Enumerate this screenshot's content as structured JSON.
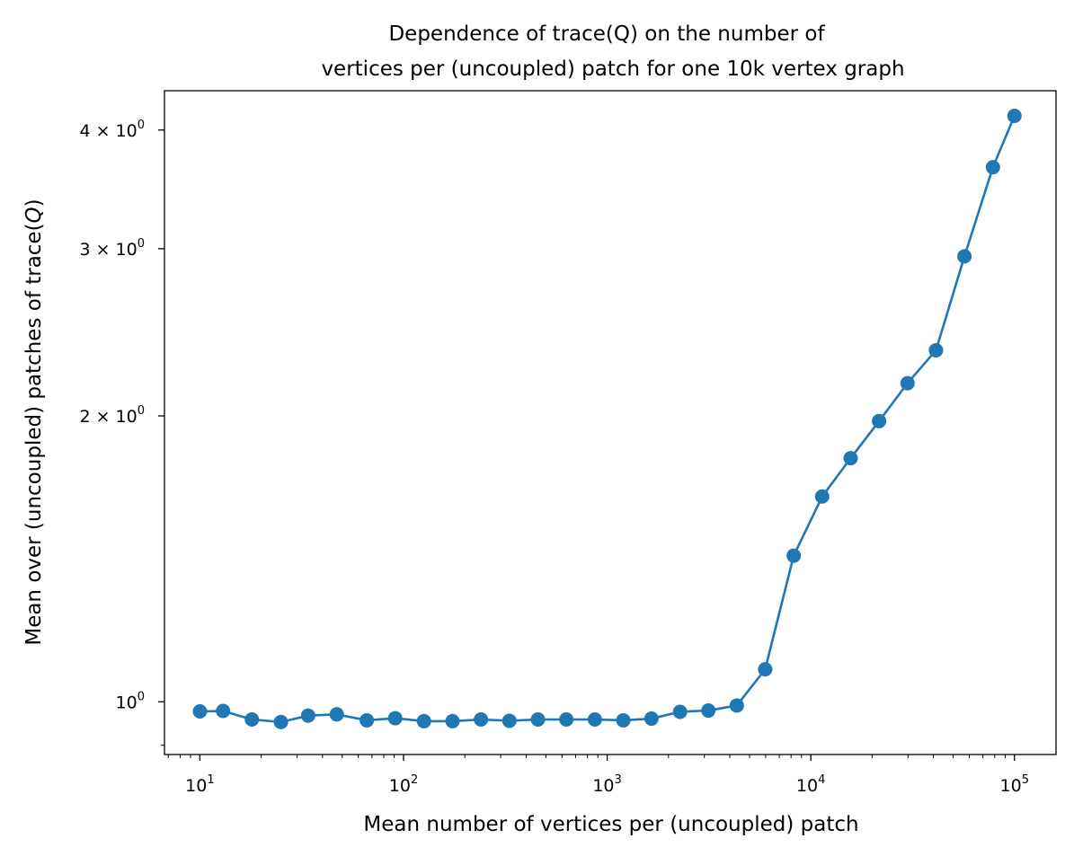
{
  "chart_data": {
    "type": "line",
    "title_lines": [
      "Dependence of trace(Q) on the number of",
      "vertices per (uncoupled) patch for one 10k vertex graph"
    ],
    "xlabel": "Mean number of vertices per (uncoupled) patch",
    "ylabel_prefix": "Mean over (uncoupled) patches of trace(",
    "ylabel_var": "Q",
    "ylabel_suffix": ")",
    "xscale": "log",
    "yscale": "log",
    "xlim": [
      6.7,
      160000
    ],
    "ylim": [
      0.88,
      4.4
    ],
    "grid": false,
    "legend": "none",
    "x_ticks": [
      {
        "base": "10",
        "exp": "1",
        "value": 10
      },
      {
        "base": "10",
        "exp": "2",
        "value": 100
      },
      {
        "base": "10",
        "exp": "3",
        "value": 1000
      },
      {
        "base": "10",
        "exp": "4",
        "value": 10000
      },
      {
        "base": "10",
        "exp": "5",
        "value": 100000
      }
    ],
    "y_ticks": [
      {
        "mant": "",
        "base": "10",
        "exp": "0",
        "value": 1
      },
      {
        "mant": "2 × ",
        "base": "10",
        "exp": "0",
        "value": 2
      },
      {
        "mant": "3 × ",
        "base": "10",
        "exp": "0",
        "value": 3
      },
      {
        "mant": "4 × ",
        "base": "10",
        "exp": "0",
        "value": 4
      }
    ],
    "series": [
      {
        "color": "#1f77b4",
        "marker": "circle",
        "x": [
          10,
          13,
          18,
          25,
          34,
          47,
          66,
          91,
          126,
          174,
          240,
          331,
          457,
          630,
          870,
          1200,
          1650,
          2280,
          3140,
          4330,
          5970,
          8240,
          11370,
          15690,
          21640,
          29850,
          41180,
          56810,
          78380,
          100000
        ],
        "y": [
          0.977,
          0.978,
          0.958,
          0.952,
          0.967,
          0.97,
          0.956,
          0.961,
          0.954,
          0.954,
          0.958,
          0.955,
          0.958,
          0.958,
          0.958,
          0.956,
          0.96,
          0.976,
          0.979,
          0.991,
          1.082,
          1.425,
          1.645,
          1.805,
          1.975,
          2.165,
          2.345,
          2.945,
          3.655,
          4.14
        ]
      }
    ]
  }
}
